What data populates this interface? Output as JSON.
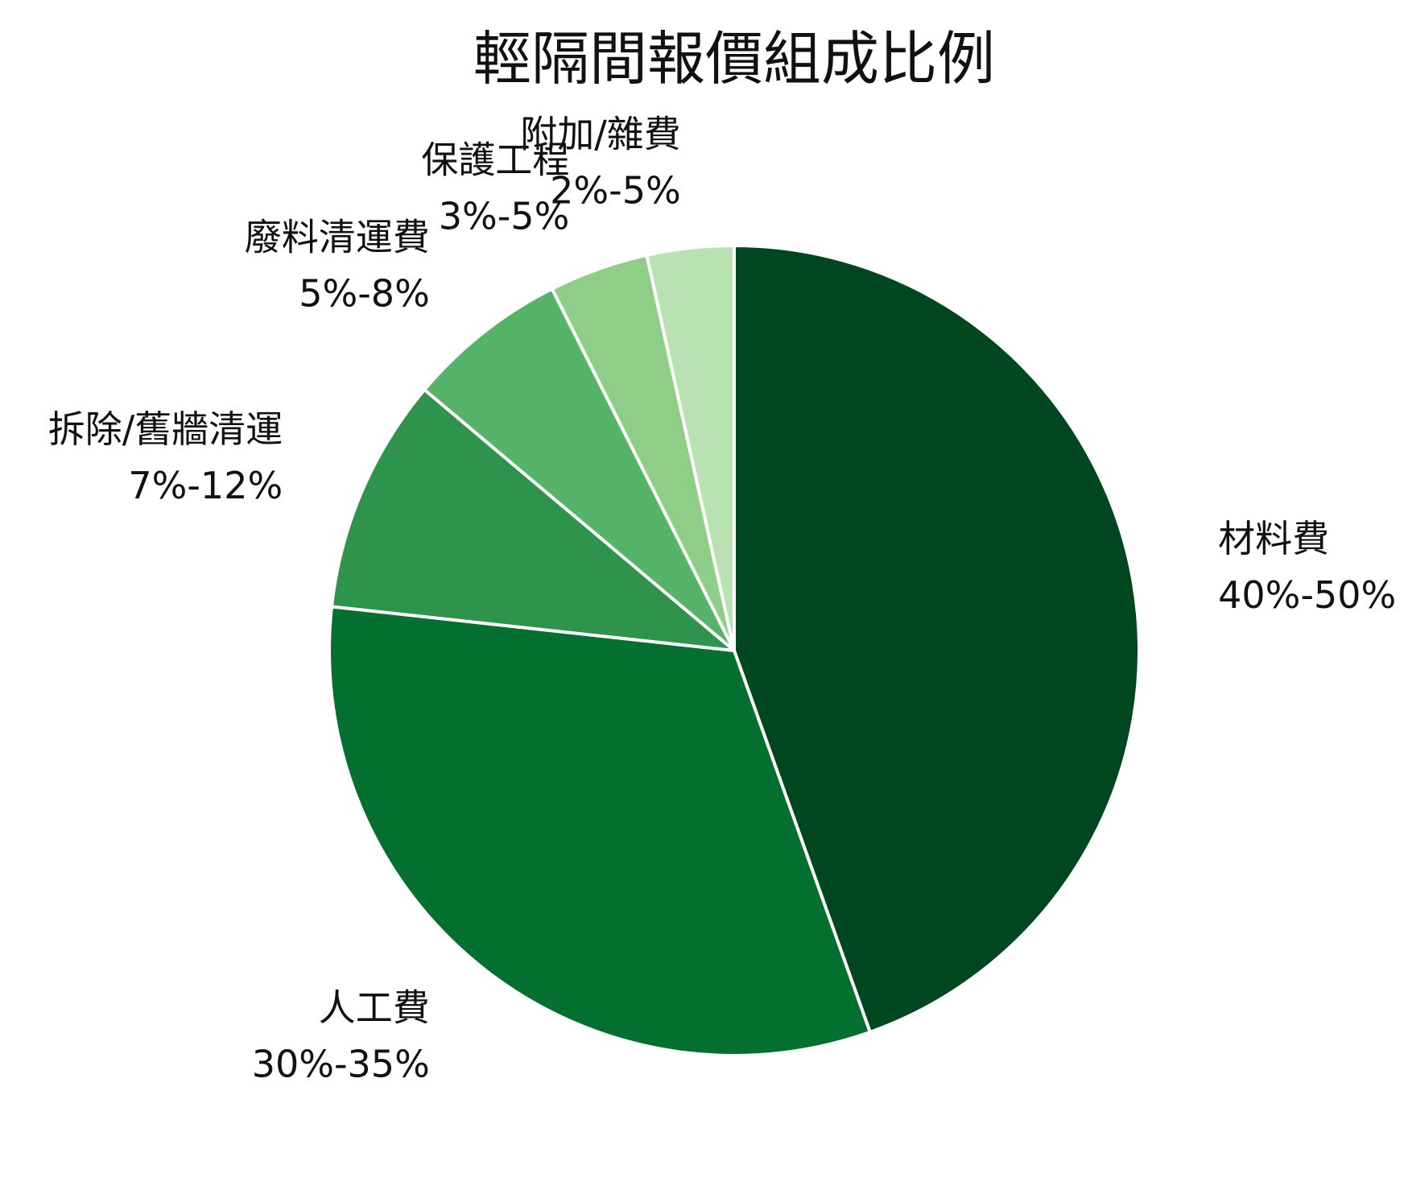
{
  "chart_data": {
    "type": "pie",
    "title": "輕隔間報價組成比例",
    "start_angle_deg": 90,
    "direction": "clockwise",
    "slices": [
      {
        "name": "材料費",
        "range": "40%-50%",
        "value": 45.0,
        "color": "#00461e"
      },
      {
        "name": "人工費",
        "range": "30%-35%",
        "value": 32.5,
        "color": "#047030"
      },
      {
        "name": "拆除/舊牆清運",
        "range": "7%-12%",
        "value": 9.5,
        "color": "#2e944c"
      },
      {
        "name": "廢料清運費",
        "range": "5%-8%",
        "value": 6.5,
        "color": "#56b468"
      },
      {
        "name": "保護工程",
        "range": "3%-5%",
        "value": 4.0,
        "color": "#8ece86"
      },
      {
        "name": "附加/雜費",
        "range": "2%-5%",
        "value": 3.5,
        "color": "#b8e2b2"
      }
    ]
  }
}
